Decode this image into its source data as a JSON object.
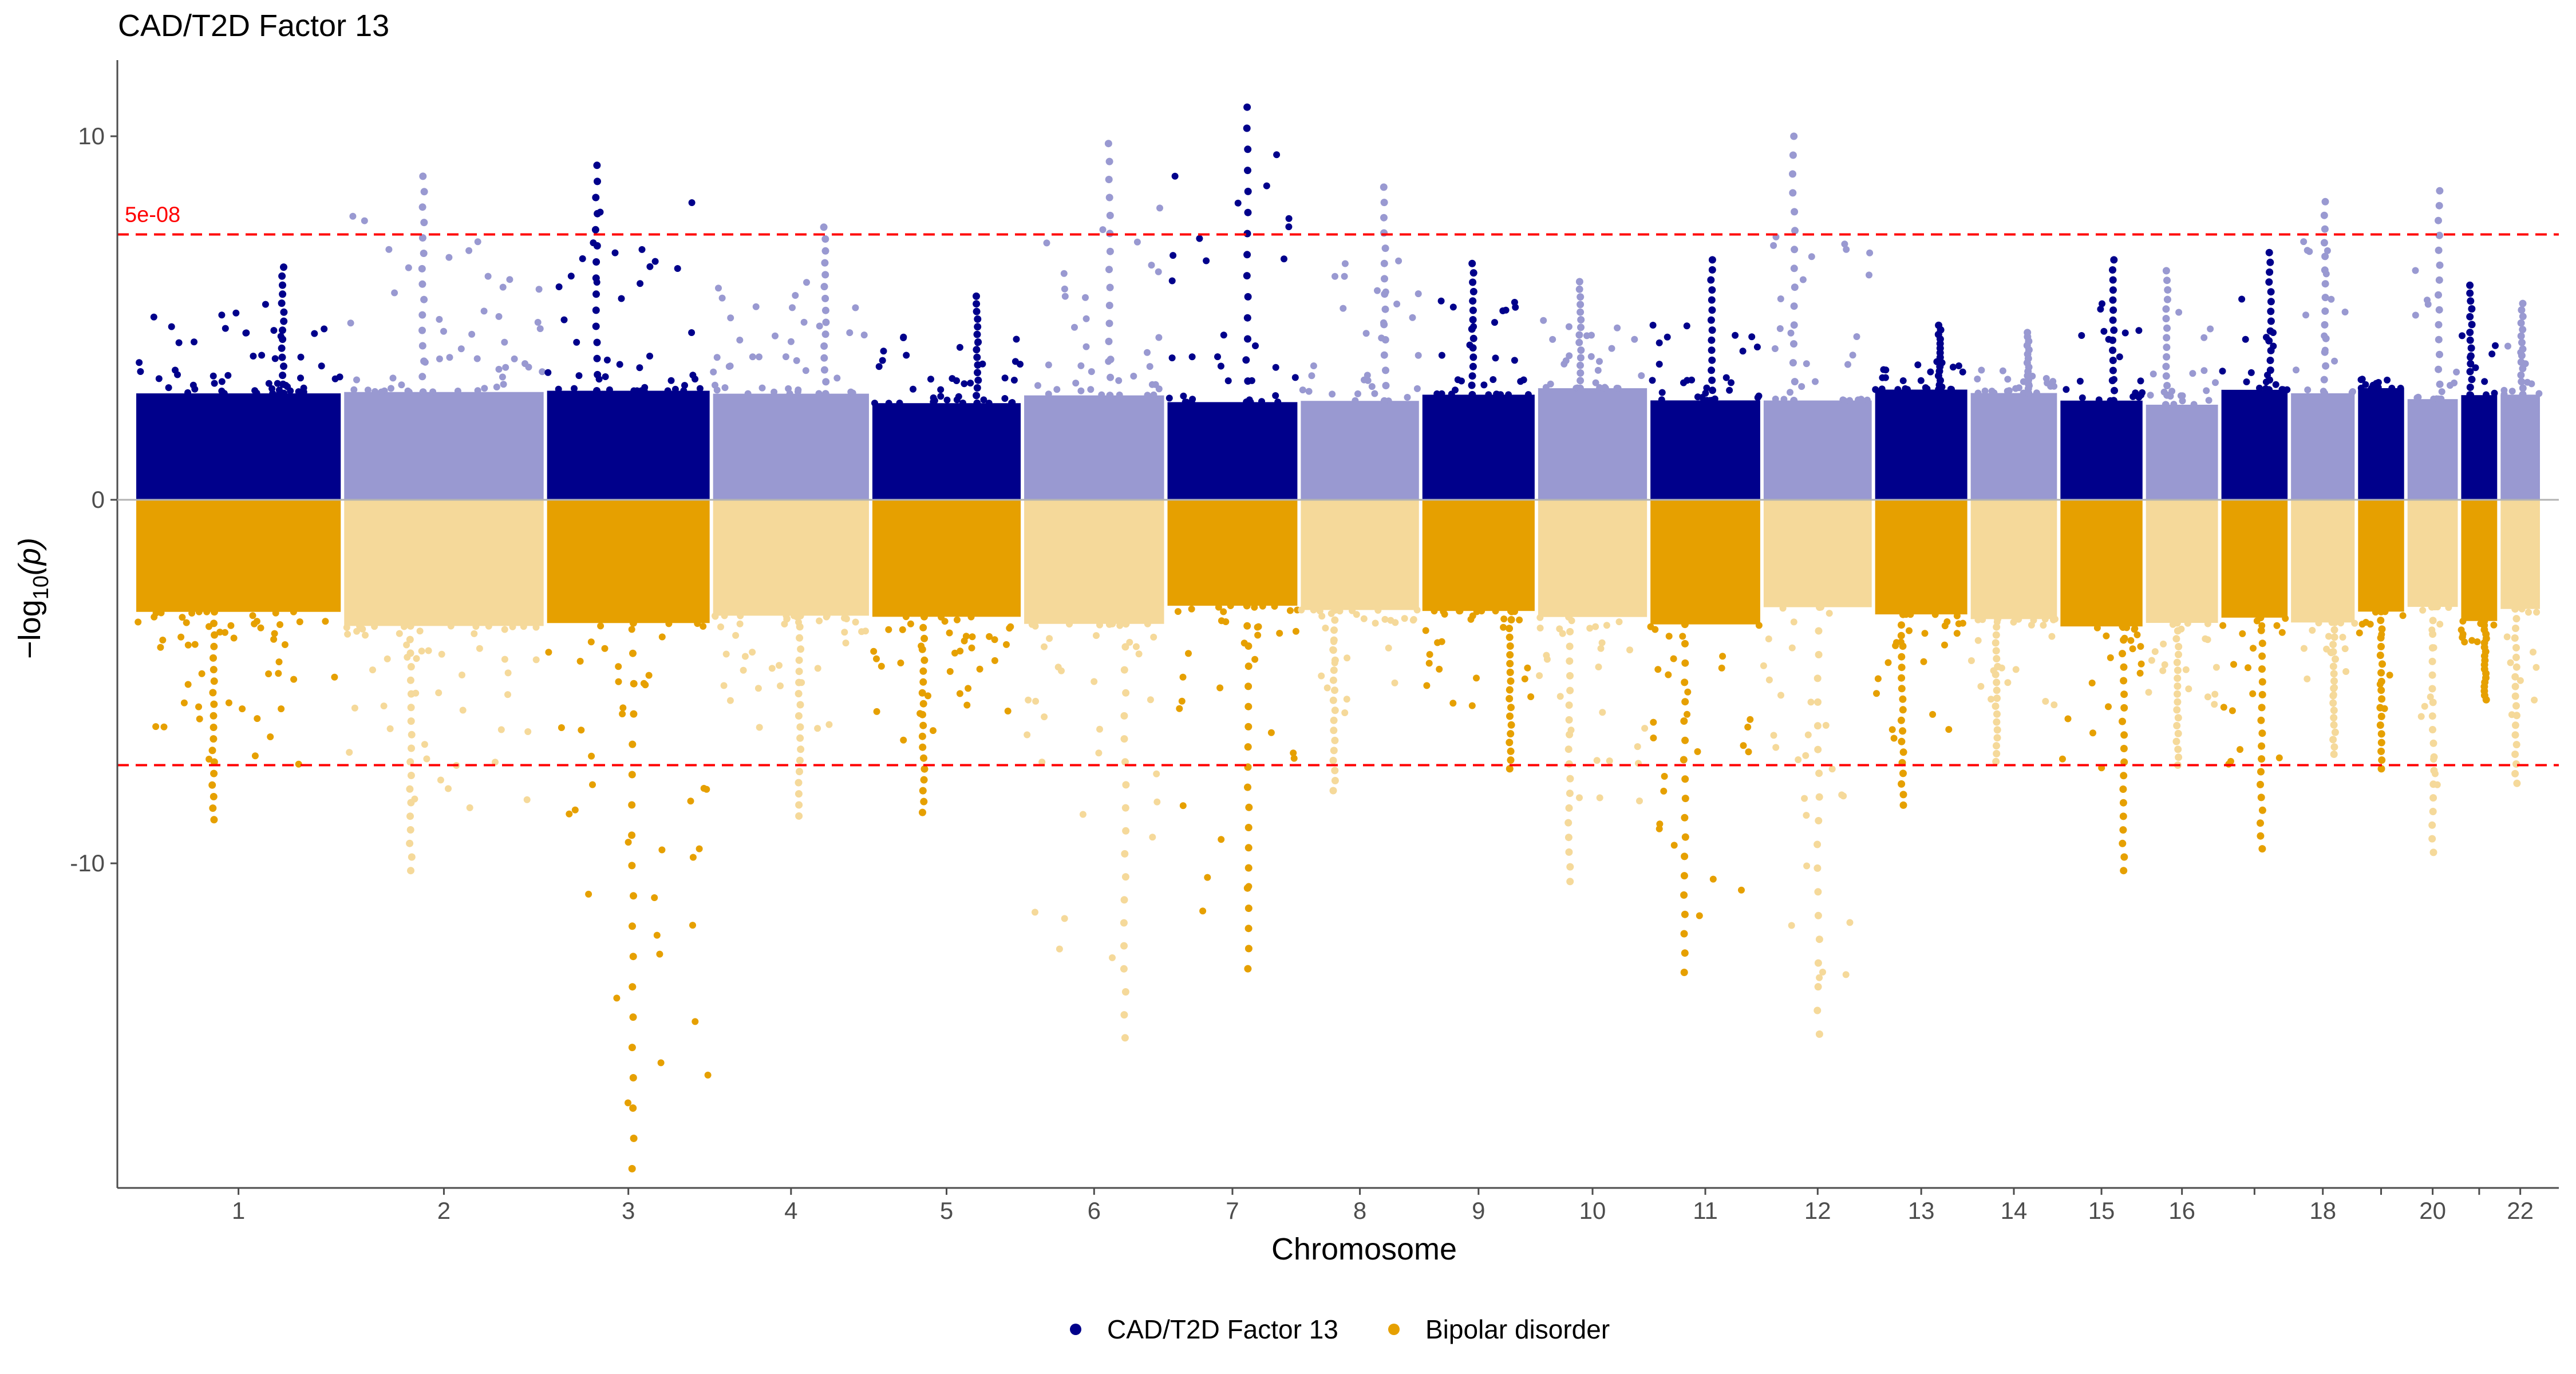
{
  "chart_data": {
    "type": "scatter",
    "subtype": "miami_plot",
    "title": "CAD/T2D Factor 13",
    "xlabel": "Chromosome",
    "ylabel_prefix": "−log",
    "ylabel_sub": "10",
    "ylabel_suffix": "(p)",
    "ylim": [
      -19,
      12
    ],
    "y_ticks": [
      {
        "value": 10,
        "label": "10"
      },
      {
        "value": 0,
        "label": "0"
      },
      {
        "value": -10,
        "label": "-10"
      }
    ],
    "threshold": {
      "value": 7.3,
      "label": "5e-08",
      "color": "#ff0000"
    },
    "series": [
      {
        "name": "CAD/T2D Factor 13",
        "colors": [
          "#00008b",
          "#9999d1"
        ],
        "direction": "up"
      },
      {
        "name": "Bipolar disorder",
        "colors": [
          "#e6a000",
          "#f5d99a"
        ],
        "direction": "down"
      }
    ],
    "chromosomes": [
      {
        "label": "1",
        "start": 0.0,
        "end": 248.0,
        "up": 6.4,
        "down": -8.8
      },
      {
        "label": "2",
        "start": 248.0,
        "end": 490.0,
        "up": 8.9,
        "down": -10.2
      },
      {
        "label": "3",
        "start": 490.0,
        "end": 688.0,
        "up": 9.2,
        "down": -18.4
      },
      {
        "label": "4",
        "start": 688.0,
        "end": 878.0,
        "up": 7.5,
        "down": -8.7
      },
      {
        "label": "5",
        "start": 878.0,
        "end": 1059.0,
        "up": 5.6,
        "down": -8.6
      },
      {
        "label": "6",
        "start": 1059.0,
        "end": 1230.0,
        "up": 9.8,
        "down": -14.8
      },
      {
        "label": "7",
        "start": 1230.0,
        "end": 1389.0,
        "up": 10.8,
        "down": -12.9
      },
      {
        "label": "8",
        "start": 1389.0,
        "end": 1534.0,
        "up": 8.6,
        "down": -8.0
      },
      {
        "label": "9",
        "start": 1534.0,
        "end": 1672.0,
        "up": 6.5,
        "down": -7.4
      },
      {
        "label": "10",
        "start": 1672.0,
        "end": 1806.0,
        "up": 6.0,
        "down": -10.5
      },
      {
        "label": "11",
        "start": 1806.0,
        "end": 1941.0,
        "up": 6.6,
        "down": -13.0
      },
      {
        "label": "12",
        "start": 1941.0,
        "end": 2074.0,
        "up": 10.0,
        "down": -14.7
      },
      {
        "label": "13",
        "start": 2074.0,
        "end": 2188.0,
        "up": 4.8,
        "down": -8.4
      },
      {
        "label": "14",
        "start": 2188.0,
        "end": 2295.0,
        "up": 4.6,
        "down": -7.2
      },
      {
        "label": "15",
        "start": 2295.0,
        "end": 2397.0,
        "up": 6.6,
        "down": -10.2
      },
      {
        "label": "16",
        "start": 2397.0,
        "end": 2487.0,
        "up": 6.3,
        "down": -7.3
      },
      {
        "label": "",
        "start": 2487.0,
        "end": 2570.0,
        "up": 6.8,
        "down": -9.6
      },
      {
        "label": "18",
        "start": 2570.0,
        "end": 2650.0,
        "up": 8.2,
        "down": -7.0
      },
      {
        "label": "",
        "start": 2650.0,
        "end": 2709.0,
        "up": 3.0,
        "down": -7.4
      },
      {
        "label": "20",
        "start": 2709.0,
        "end": 2773.0,
        "up": 8.5,
        "down": -9.7
      },
      {
        "label": "",
        "start": 2773.0,
        "end": 2820.0,
        "up": 5.9,
        "down": -5.5
      },
      {
        "label": "22",
        "start": 2820.0,
        "end": 2871.0,
        "up": 5.4,
        "down": -7.8
      }
    ]
  }
}
